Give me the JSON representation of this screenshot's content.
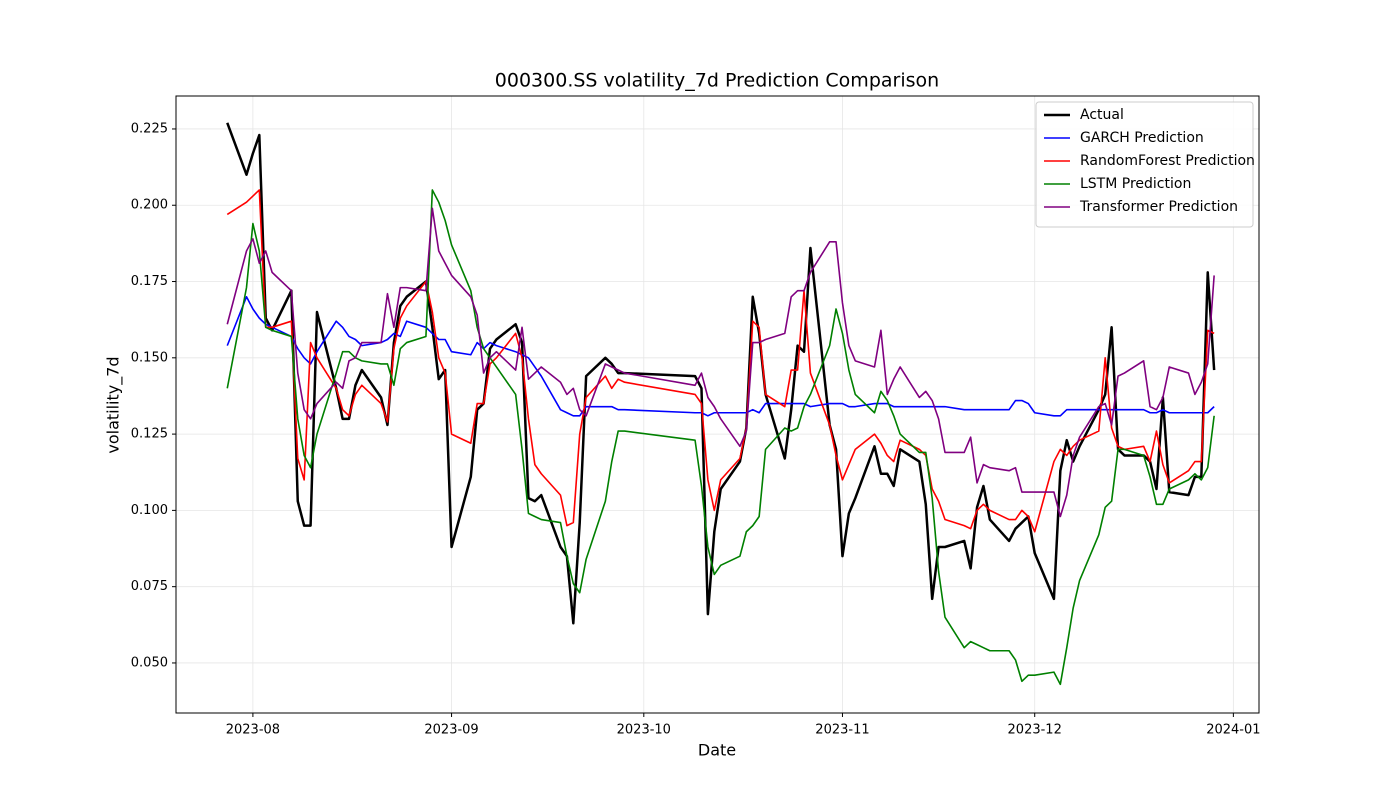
{
  "chart_data": {
    "type": "line",
    "title": "000300.SS volatility_7d Prediction Comparison",
    "x_label": "Date",
    "y_label": "volatility_7d",
    "x": [
      "2023-07-28",
      "2023-07-31",
      "2023-08-01",
      "2023-08-02",
      "2023-08-03",
      "2023-08-04",
      "2023-08-07",
      "2023-08-08",
      "2023-08-09",
      "2023-08-10",
      "2023-08-11",
      "2023-08-14",
      "2023-08-15",
      "2023-08-16",
      "2023-08-17",
      "2023-08-18",
      "2023-08-21",
      "2023-08-22",
      "2023-08-23",
      "2023-08-24",
      "2023-08-25",
      "2023-08-28",
      "2023-08-29",
      "2023-08-30",
      "2023-08-31",
      "2023-09-01",
      "2023-09-04",
      "2023-09-05",
      "2023-09-06",
      "2023-09-07",
      "2023-09-08",
      "2023-09-11",
      "2023-09-12",
      "2023-09-13",
      "2023-09-14",
      "2023-09-15",
      "2023-09-18",
      "2023-09-19",
      "2023-09-20",
      "2023-09-21",
      "2023-09-22",
      "2023-09-25",
      "2023-09-26",
      "2023-09-27",
      "2023-09-28",
      "2023-10-09",
      "2023-10-10",
      "2023-10-11",
      "2023-10-12",
      "2023-10-13",
      "2023-10-16",
      "2023-10-17",
      "2023-10-18",
      "2023-10-19",
      "2023-10-20",
      "2023-10-23",
      "2023-10-24",
      "2023-10-25",
      "2023-10-26",
      "2023-10-27",
      "2023-10-30",
      "2023-10-31",
      "2023-11-01",
      "2023-11-02",
      "2023-11-03",
      "2023-11-06",
      "2023-11-07",
      "2023-11-08",
      "2023-11-09",
      "2023-11-10",
      "2023-11-13",
      "2023-11-14",
      "2023-11-15",
      "2023-11-16",
      "2023-11-17",
      "2023-11-20",
      "2023-11-21",
      "2023-11-22",
      "2023-11-23",
      "2023-11-24",
      "2023-11-27",
      "2023-11-28",
      "2023-11-29",
      "2023-11-30",
      "2023-12-01",
      "2023-12-04",
      "2023-12-05",
      "2023-12-06",
      "2023-12-07",
      "2023-12-08",
      "2023-12-11",
      "2023-12-12",
      "2023-12-13",
      "2023-12-14",
      "2023-12-15",
      "2023-12-18",
      "2023-12-19",
      "2023-12-20",
      "2023-12-21",
      "2023-12-22",
      "2023-12-25",
      "2023-12-26",
      "2023-12-27",
      "2023-12-28",
      "2023-12-29"
    ],
    "series": [
      {
        "name": "Actual",
        "color": "#000000",
        "width": 2.5,
        "values": [
          0.227,
          0.21,
          0.217,
          0.223,
          0.163,
          0.159,
          0.172,
          0.103,
          0.095,
          0.095,
          0.165,
          0.14,
          0.13,
          0.13,
          0.141,
          0.146,
          0.137,
          0.128,
          0.155,
          0.167,
          0.17,
          0.175,
          0.16,
          0.143,
          0.146,
          0.088,
          0.111,
          0.133,
          0.135,
          0.153,
          0.156,
          0.161,
          0.155,
          0.104,
          0.103,
          0.105,
          0.088,
          0.085,
          0.063,
          0.096,
          0.144,
          0.15,
          0.148,
          0.145,
          0.145,
          0.144,
          0.14,
          0.066,
          0.093,
          0.107,
          0.116,
          0.127,
          0.17,
          0.158,
          0.138,
          0.117,
          0.133,
          0.154,
          0.152,
          0.186,
          0.128,
          0.12,
          0.085,
          0.099,
          0.104,
          0.121,
          0.112,
          0.112,
          0.108,
          0.12,
          0.116,
          0.102,
          0.071,
          0.088,
          0.088,
          0.09,
          0.081,
          0.101,
          0.108,
          0.097,
          0.09,
          0.094,
          0.096,
          0.098,
          0.086,
          0.071,
          0.113,
          0.123,
          0.116,
          0.121,
          0.133,
          0.138,
          0.16,
          0.12,
          0.118,
          0.118,
          0.116,
          0.107,
          0.137,
          0.106,
          0.105,
          0.111,
          0.111,
          0.178,
          0.146
        ]
      },
      {
        "name": "GARCH Prediction",
        "color": "#0000ff",
        "width": 1.6,
        "values": [
          0.154,
          0.17,
          0.166,
          0.163,
          0.161,
          0.16,
          0.157,
          0.153,
          0.15,
          0.148,
          0.152,
          0.162,
          0.16,
          0.157,
          0.156,
          0.154,
          0.155,
          0.156,
          0.158,
          0.157,
          0.162,
          0.16,
          0.158,
          0.156,
          0.156,
          0.152,
          0.151,
          0.155,
          0.153,
          0.155,
          0.154,
          0.152,
          0.151,
          0.15,
          0.147,
          0.144,
          0.133,
          0.132,
          0.131,
          0.131,
          0.134,
          0.134,
          0.134,
          0.133,
          0.133,
          0.132,
          0.132,
          0.131,
          0.132,
          0.132,
          0.132,
          0.132,
          0.133,
          0.132,
          0.135,
          0.135,
          0.135,
          0.135,
          0.135,
          0.134,
          0.135,
          0.135,
          0.135,
          0.134,
          0.134,
          0.135,
          0.135,
          0.135,
          0.134,
          0.134,
          0.134,
          0.134,
          0.134,
          0.134,
          0.134,
          0.133,
          0.133,
          0.133,
          0.133,
          0.133,
          0.133,
          0.136,
          0.136,
          0.135,
          0.132,
          0.131,
          0.131,
          0.133,
          0.133,
          0.133,
          0.133,
          0.133,
          0.133,
          0.133,
          0.133,
          0.133,
          0.132,
          0.132,
          0.133,
          0.132,
          0.132,
          0.132,
          0.132,
          0.132,
          0.134
        ]
      },
      {
        "name": "RandomForest Prediction",
        "color": "#ff0000",
        "width": 1.6,
        "values": [
          0.197,
          0.201,
          0.203,
          0.205,
          0.16,
          0.16,
          0.162,
          0.117,
          0.11,
          0.155,
          0.15,
          0.14,
          0.133,
          0.131,
          0.138,
          0.141,
          0.135,
          0.129,
          0.153,
          0.163,
          0.167,
          0.175,
          0.165,
          0.15,
          0.145,
          0.125,
          0.122,
          0.135,
          0.135,
          0.148,
          0.15,
          0.158,
          0.15,
          0.13,
          0.115,
          0.112,
          0.105,
          0.095,
          0.096,
          0.125,
          0.137,
          0.144,
          0.14,
          0.143,
          0.142,
          0.138,
          0.135,
          0.11,
          0.1,
          0.11,
          0.117,
          0.127,
          0.162,
          0.16,
          0.138,
          0.134,
          0.146,
          0.146,
          0.172,
          0.145,
          0.128,
          0.118,
          0.11,
          0.115,
          0.12,
          0.125,
          0.122,
          0.118,
          0.116,
          0.123,
          0.12,
          0.118,
          0.107,
          0.103,
          0.097,
          0.095,
          0.094,
          0.1,
          0.102,
          0.1,
          0.097,
          0.097,
          0.1,
          0.098,
          0.093,
          0.116,
          0.12,
          0.118,
          0.121,
          0.123,
          0.126,
          0.15,
          0.127,
          0.121,
          0.12,
          0.121,
          0.116,
          0.126,
          0.115,
          0.109,
          0.113,
          0.116,
          0.116,
          0.159,
          0.158
        ]
      },
      {
        "name": "LSTM Prediction",
        "color": "#008000",
        "width": 1.6,
        "values": [
          0.14,
          0.173,
          0.194,
          0.185,
          0.16,
          0.159,
          0.157,
          0.13,
          0.118,
          0.114,
          0.125,
          0.145,
          0.152,
          0.152,
          0.15,
          0.149,
          0.148,
          0.148,
          0.141,
          0.153,
          0.155,
          0.157,
          0.205,
          0.201,
          0.195,
          0.187,
          0.172,
          0.16,
          0.153,
          0.15,
          0.147,
          0.138,
          0.12,
          0.099,
          0.098,
          0.097,
          0.096,
          0.085,
          0.076,
          0.073,
          0.084,
          0.103,
          0.116,
          0.126,
          0.126,
          0.123,
          0.108,
          0.088,
          0.079,
          0.082,
          0.085,
          0.093,
          0.095,
          0.098,
          0.12,
          0.127,
          0.126,
          0.127,
          0.134,
          0.138,
          0.154,
          0.166,
          0.158,
          0.146,
          0.138,
          0.132,
          0.139,
          0.136,
          0.131,
          0.125,
          0.119,
          0.119,
          0.104,
          0.08,
          0.065,
          0.055,
          0.057,
          0.056,
          0.055,
          0.054,
          0.054,
          0.051,
          0.044,
          0.046,
          0.046,
          0.047,
          0.043,
          0.055,
          0.068,
          0.077,
          0.092,
          0.101,
          0.103,
          0.12,
          0.12,
          0.118,
          0.111,
          0.102,
          0.102,
          0.107,
          0.11,
          0.112,
          0.11,
          0.114,
          0.131
        ]
      },
      {
        "name": "Transformer Prediction",
        "color": "#800080",
        "width": 1.6,
        "values": [
          0.161,
          0.185,
          0.189,
          0.181,
          0.185,
          0.178,
          0.172,
          0.145,
          0.133,
          0.13,
          0.135,
          0.142,
          0.14,
          0.149,
          0.15,
          0.155,
          0.155,
          0.171,
          0.16,
          0.173,
          0.173,
          0.172,
          0.199,
          0.185,
          0.181,
          0.177,
          0.17,
          0.164,
          0.145,
          0.15,
          0.152,
          0.146,
          0.16,
          0.143,
          0.145,
          0.147,
          0.142,
          0.138,
          0.14,
          0.133,
          0.131,
          0.148,
          0.147,
          0.146,
          0.145,
          0.141,
          0.145,
          0.137,
          0.134,
          0.13,
          0.121,
          0.126,
          0.155,
          0.155,
          0.156,
          0.158,
          0.17,
          0.172,
          0.172,
          0.178,
          0.188,
          0.188,
          0.168,
          0.154,
          0.149,
          0.147,
          0.159,
          0.138,
          0.143,
          0.147,
          0.137,
          0.139,
          0.136,
          0.13,
          0.119,
          0.119,
          0.124,
          0.109,
          0.115,
          0.114,
          0.113,
          0.114,
          0.106,
          0.106,
          0.106,
          0.106,
          0.098,
          0.105,
          0.118,
          0.124,
          0.134,
          0.135,
          0.128,
          0.144,
          0.145,
          0.149,
          0.134,
          0.133,
          0.137,
          0.147,
          0.145,
          0.138,
          0.142,
          0.148,
          0.177
        ]
      }
    ],
    "xlim": [
      "2023-07-20",
      "2024-01-05"
    ],
    "xticks": [
      {
        "value": "2023-08-01",
        "label": "2023-08"
      },
      {
        "value": "2023-09-01",
        "label": "2023-09"
      },
      {
        "value": "2023-10-01",
        "label": "2023-10"
      },
      {
        "value": "2023-11-01",
        "label": "2023-11"
      },
      {
        "value": "2023-12-01",
        "label": "2023-12"
      },
      {
        "value": "2024-01-01",
        "label": "2024-01"
      }
    ],
    "ylim": [
      0.0336,
      0.2358
    ],
    "yticks": [
      {
        "value": 0.05,
        "label": "0.050"
      },
      {
        "value": 0.075,
        "label": "0.075"
      },
      {
        "value": 0.1,
        "label": "0.100"
      },
      {
        "value": 0.125,
        "label": "0.125"
      },
      {
        "value": 0.15,
        "label": "0.150"
      },
      {
        "value": 0.175,
        "label": "0.175"
      },
      {
        "value": 0.2,
        "label": "0.200"
      },
      {
        "value": 0.225,
        "label": "0.225"
      }
    ],
    "grid": true,
    "legend": "upper right"
  }
}
